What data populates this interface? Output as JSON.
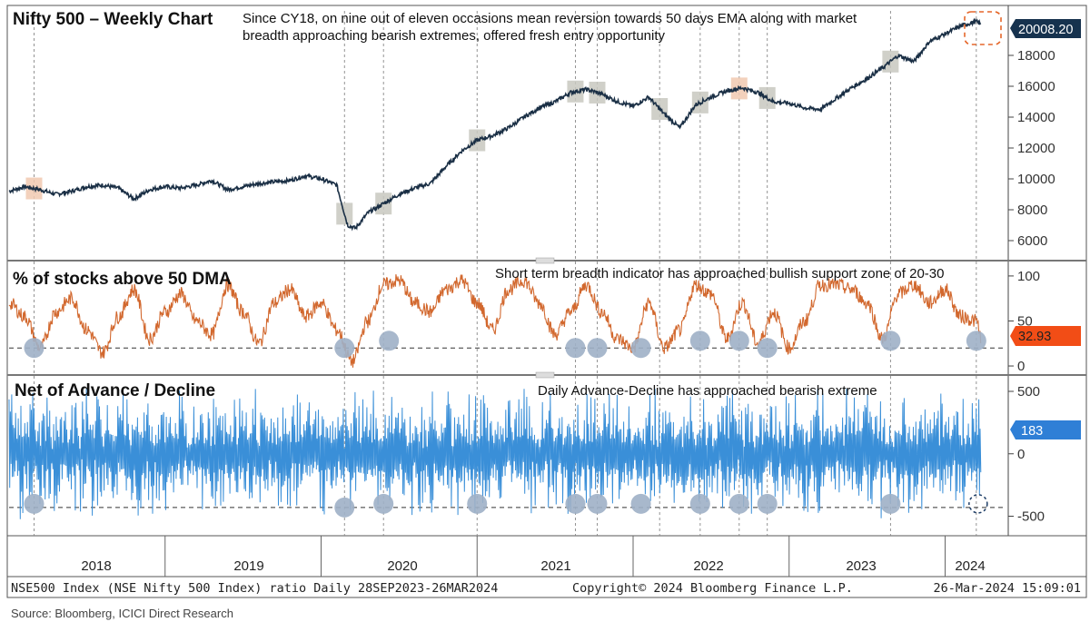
{
  "chart_data": [
    {
      "type": "line",
      "title": "Nifty 500 – Weekly  Chart",
      "annotation": [
        "Since CY18, on nine out of eleven occasions mean reversion towards 50 days EMA along with market",
        "breadth approaching bearish extremes, offered fresh entry opportunity"
      ],
      "y_ticks": [
        "6000",
        "8000",
        "10000",
        "12000",
        "14000",
        "16000",
        "18000"
      ],
      "ylim": [
        5000,
        21000
      ],
      "last_value": "20008.20",
      "x": [
        2018.0,
        2018.1,
        2018.2,
        2018.3,
        2018.4,
        2018.5,
        2018.6,
        2018.7,
        2018.8,
        2018.9,
        2019.0,
        2019.1,
        2019.2,
        2019.3,
        2019.4,
        2019.5,
        2019.6,
        2019.7,
        2019.8,
        2019.9,
        2020.0,
        2020.1,
        2020.17,
        2020.22,
        2020.3,
        2020.4,
        2020.5,
        2020.6,
        2020.7,
        2020.8,
        2020.9,
        2021.0,
        2021.1,
        2021.2,
        2021.3,
        2021.4,
        2021.5,
        2021.6,
        2021.7,
        2021.8,
        2021.9,
        2022.0,
        2022.1,
        2022.2,
        2022.3,
        2022.4,
        2022.5,
        2022.6,
        2022.7,
        2022.8,
        2022.9,
        2023.0,
        2023.1,
        2023.2,
        2023.3,
        2023.4,
        2023.5,
        2023.6,
        2023.7,
        2023.8,
        2023.9,
        2024.0,
        2024.1,
        2024.2,
        2024.23
      ],
      "values": [
        9200,
        9500,
        9300,
        9000,
        9200,
        9500,
        9600,
        9400,
        8700,
        9300,
        9500,
        9400,
        9600,
        9900,
        9300,
        9500,
        9700,
        9800,
        9900,
        10200,
        10000,
        9600,
        7000,
        6800,
        7800,
        8400,
        9000,
        9400,
        9700,
        10800,
        11800,
        12500,
        12800,
        13300,
        14000,
        14600,
        15000,
        15600,
        15800,
        15500,
        15000,
        14700,
        15300,
        14200,
        13300,
        14800,
        15300,
        15700,
        15900,
        15600,
        15000,
        14900,
        14600,
        14500,
        15200,
        15900,
        16500,
        17200,
        18000,
        17600,
        18900,
        19400,
        19900,
        20200,
        20008
      ]
    },
    {
      "type": "line",
      "title": "% of stocks above 50 DMA",
      "annotation": "Short term breadth indicator has approached bullish support zone of 20-30",
      "y_ticks": [
        "100",
        "50",
        "0"
      ],
      "ylim": [
        -5,
        110
      ],
      "support_level": 20,
      "last_value": "32.93",
      "x": [
        2018.0,
        2018.1,
        2018.2,
        2018.3,
        2018.4,
        2018.5,
        2018.6,
        2018.7,
        2018.8,
        2018.9,
        2019.0,
        2019.1,
        2019.2,
        2019.3,
        2019.4,
        2019.5,
        2019.6,
        2019.7,
        2019.8,
        2019.9,
        2020.0,
        2020.1,
        2020.2,
        2020.3,
        2020.4,
        2020.5,
        2020.6,
        2020.7,
        2020.8,
        2020.9,
        2021.0,
        2021.1,
        2021.2,
        2021.3,
        2021.4,
        2021.5,
        2021.6,
        2021.7,
        2021.8,
        2021.9,
        2022.0,
        2022.1,
        2022.2,
        2022.3,
        2022.4,
        2022.5,
        2022.6,
        2022.7,
        2022.8,
        2022.9,
        2023.0,
        2023.1,
        2023.2,
        2023.3,
        2023.4,
        2023.5,
        2023.6,
        2023.7,
        2023.8,
        2023.9,
        2024.0,
        2024.1,
        2024.2,
        2024.23
      ],
      "values": [
        70,
        55,
        20,
        60,
        75,
        40,
        15,
        55,
        85,
        30,
        60,
        80,
        50,
        35,
        90,
        60,
        25,
        70,
        85,
        55,
        70,
        40,
        5,
        50,
        90,
        95,
        70,
        60,
        85,
        95,
        70,
        40,
        85,
        95,
        70,
        35,
        60,
        90,
        60,
        30,
        20,
        70,
        20,
        40,
        90,
        80,
        30,
        70,
        25,
        60,
        20,
        50,
        90,
        90,
        85,
        70,
        30,
        80,
        90,
        70,
        85,
        55,
        50,
        33
      ]
    },
    {
      "type": "line",
      "title": "Net of Advance / Decline",
      "annotation": "Daily Advance-Decline has approached bearish extreme",
      "y_ticks": [
        "500",
        "0",
        "-500"
      ],
      "ylim": [
        -620,
        580
      ],
      "extreme_level": -430,
      "last_value": "183"
    }
  ],
  "x_axis": {
    "years": [
      "2018",
      "2019",
      "2020",
      "2021",
      "2022",
      "2023",
      "2024"
    ]
  },
  "footer": {
    "left": "NSE500 Index (NSE Nifty 500 Index) ratio  Daily 28SEP2023-26MAR2024",
    "middle": "Copyright© 2024 Bloomberg Finance L.P.",
    "right": "26-Mar-2024 15:09:01"
  },
  "source": "Source: Bloomberg, ICICI Direct Research",
  "colors": {
    "price": "#1a2f45",
    "breadth": "#d2682e",
    "adline": "#3a8fd8",
    "marker": "#9fb0c6",
    "price_marker": "#c8c8c0",
    "price_marker_warm": "#f1c9b0",
    "badge_price": "#16324e",
    "badge_breadth": "#f24d16",
    "badge_adline": "#2f7fd6",
    "dashed_box": "#e5672a"
  }
}
